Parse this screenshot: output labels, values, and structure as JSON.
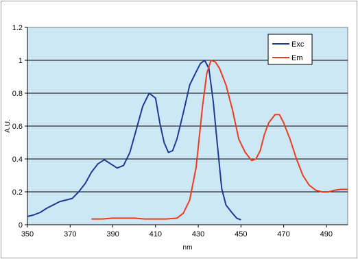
{
  "chart_data": {
    "type": "line",
    "xlabel": "nm",
    "ylabel": "A.U.",
    "xlim": [
      350,
      500
    ],
    "ylim": [
      0,
      1.2
    ],
    "x_ticks": [
      "350",
      "370",
      "390",
      "410",
      "430",
      "450",
      "470",
      "490"
    ],
    "y_ticks": [
      "0",
      "0.2",
      "0.4",
      "0.6",
      "0.8",
      "1",
      "1.2"
    ],
    "grid": "horizontal",
    "legend_position": "top-right",
    "plot_background": "#cce8f4",
    "series": [
      {
        "name": "Exc",
        "color": "#1f3a93",
        "points": [
          [
            350,
            0.05
          ],
          [
            353,
            0.06
          ],
          [
            356,
            0.075
          ],
          [
            359,
            0.1
          ],
          [
            362,
            0.12
          ],
          [
            365,
            0.14
          ],
          [
            368,
            0.15
          ],
          [
            371,
            0.16
          ],
          [
            374,
            0.2
          ],
          [
            377,
            0.25
          ],
          [
            380,
            0.32
          ],
          [
            383,
            0.37
          ],
          [
            386,
            0.395
          ],
          [
            389,
            0.37
          ],
          [
            392,
            0.345
          ],
          [
            395,
            0.36
          ],
          [
            398,
            0.44
          ],
          [
            401,
            0.58
          ],
          [
            404,
            0.72
          ],
          [
            407,
            0.8
          ],
          [
            410,
            0.77
          ],
          [
            412,
            0.62
          ],
          [
            414,
            0.5
          ],
          [
            416,
            0.44
          ],
          [
            418,
            0.45
          ],
          [
            420,
            0.52
          ],
          [
            423,
            0.68
          ],
          [
            426,
            0.85
          ],
          [
            429,
            0.93
          ],
          [
            431,
            0.98
          ],
          [
            433,
            1.0
          ],
          [
            435,
            0.95
          ],
          [
            437,
            0.75
          ],
          [
            439,
            0.48
          ],
          [
            441,
            0.22
          ],
          [
            443,
            0.12
          ],
          [
            446,
            0.07
          ],
          [
            448,
            0.04
          ],
          [
            450,
            0.03
          ]
        ]
      },
      {
        "name": "Em",
        "color": "#ee3b1f",
        "points": [
          [
            380,
            0.035
          ],
          [
            385,
            0.035
          ],
          [
            390,
            0.04
          ],
          [
            395,
            0.04
          ],
          [
            400,
            0.04
          ],
          [
            405,
            0.035
          ],
          [
            410,
            0.035
          ],
          [
            415,
            0.035
          ],
          [
            420,
            0.04
          ],
          [
            423,
            0.07
          ],
          [
            426,
            0.15
          ],
          [
            429,
            0.35
          ],
          [
            432,
            0.72
          ],
          [
            434,
            0.92
          ],
          [
            436,
            1.0
          ],
          [
            438,
            0.99
          ],
          [
            440,
            0.95
          ],
          [
            443,
            0.85
          ],
          [
            446,
            0.7
          ],
          [
            449,
            0.52
          ],
          [
            452,
            0.44
          ],
          [
            455,
            0.39
          ],
          [
            457,
            0.4
          ],
          [
            459,
            0.45
          ],
          [
            461,
            0.55
          ],
          [
            463,
            0.62
          ],
          [
            466,
            0.67
          ],
          [
            468,
            0.67
          ],
          [
            470,
            0.62
          ],
          [
            473,
            0.52
          ],
          [
            476,
            0.4
          ],
          [
            479,
            0.3
          ],
          [
            482,
            0.24
          ],
          [
            485,
            0.21
          ],
          [
            488,
            0.2
          ],
          [
            491,
            0.2
          ],
          [
            494,
            0.21
          ],
          [
            497,
            0.215
          ],
          [
            500,
            0.215
          ]
        ]
      }
    ]
  }
}
